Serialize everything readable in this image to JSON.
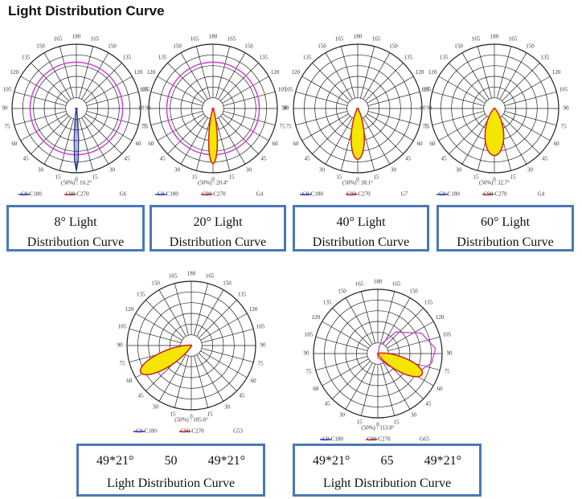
{
  "title": "Light Distribution Curve",
  "angle_labels": [
    0,
    15,
    30,
    45,
    60,
    75,
    90,
    105,
    120,
    135,
    150,
    165,
    180
  ],
  "diagrams": [
    {
      "note": "(50%) : 10.2°",
      "legend": [
        "C0-C180",
        "C90-C270",
        "G6"
      ],
      "caption": [
        "8° Light",
        "Distribution Curve"
      ]
    },
    {
      "note": "(50%) : 20.4°",
      "legend": [
        "C0-C180",
        "C90-C270",
        "G4"
      ],
      "caption": [
        "20° Light",
        "Distribution Curve"
      ]
    },
    {
      "note": "(50%) : 38.1°",
      "legend": [
        "C0-C180",
        "C90-C270",
        "G7"
      ],
      "caption": [
        "40° Light",
        "Distribution Curve"
      ]
    },
    {
      "note": "(50%) : 32.7°",
      "legend": [
        "C0-C180",
        "C90-C270",
        "G4"
      ],
      "caption": [
        "60° Light",
        "Distribution Curve"
      ]
    },
    {
      "note": "(50%) : 105.6°",
      "legend": [
        "C0-C180",
        "C90-C270",
        "G53"
      ],
      "caption": [
        "49*21°",
        "50",
        "49*21°",
        "Light Distribution Curve"
      ]
    },
    {
      "note": "(50%) : 113.8°",
      "legend": [
        "C0-C180",
        "C90-C270",
        "G65"
      ],
      "caption": [
        "49*21°",
        "65",
        "49*21°",
        "Light Distribution Curve"
      ]
    }
  ]
}
